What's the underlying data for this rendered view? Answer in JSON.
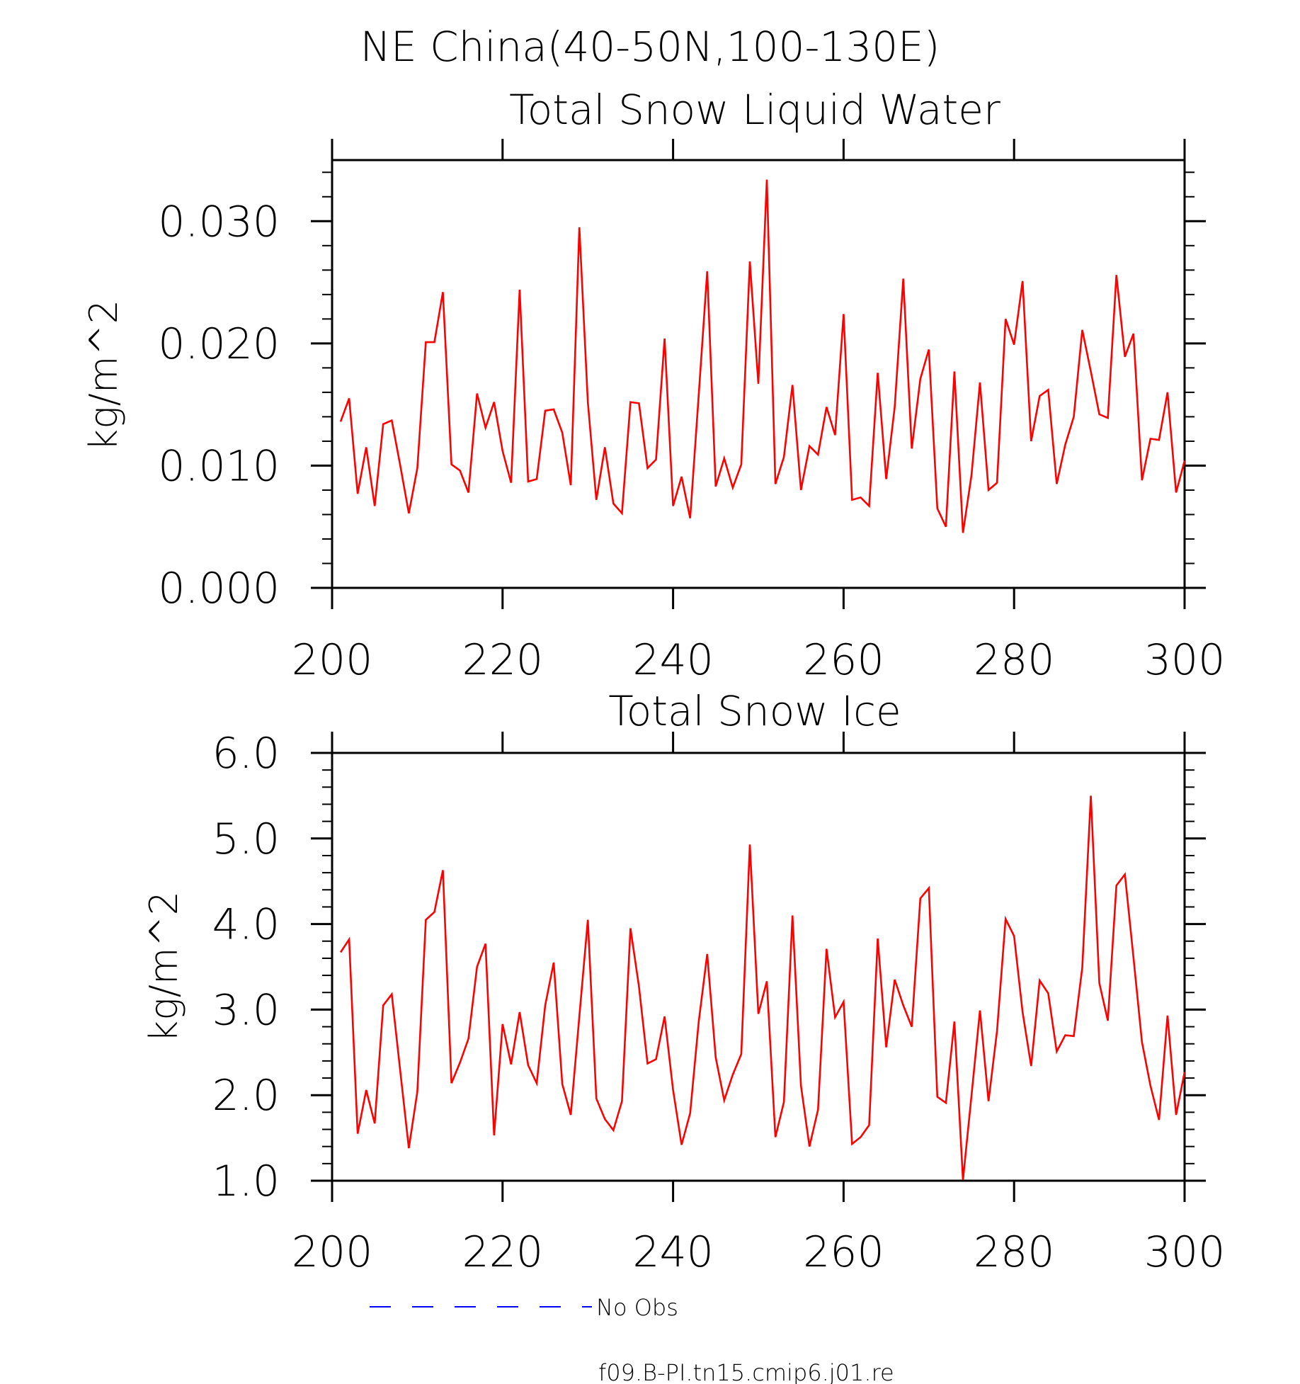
{
  "suptitle": "NE China(40-50N,100-130E)",
  "chart_data": [
    {
      "type": "line",
      "title": "Total Snow Liquid Water",
      "xlabel": "",
      "ylabel": "kg/m^2",
      "xlim": [
        200,
        300
      ],
      "ylim": [
        0,
        0.035
      ],
      "xticks": [
        200,
        220,
        240,
        260,
        280,
        300
      ],
      "xtick_labels": [
        "200",
        "220",
        "240",
        "260",
        "280",
        "300"
      ],
      "yticks": [
        0,
        0.01,
        0.02,
        0.03
      ],
      "ytick_labels": [
        "0.000",
        "0.010",
        "0.020",
        "0.030"
      ],
      "series": [
        {
          "name": "f09.B-PI.tn15.cmip6.j01.re",
          "color": "#ff0000",
          "x_start": 201,
          "x_step": 1,
          "values": [
            0.0136,
            0.0155,
            0.0077,
            0.0115,
            0.0067,
            0.0134,
            0.0137,
            0.01,
            0.0061,
            0.0098,
            0.0201,
            0.0201,
            0.0242,
            0.0101,
            0.0096,
            0.0078,
            0.0159,
            0.0131,
            0.0152,
            0.0112,
            0.0086,
            0.0244,
            0.0087,
            0.0089,
            0.0145,
            0.0146,
            0.0127,
            0.0084,
            0.0295,
            0.0152,
            0.0072,
            0.0115,
            0.0069,
            0.0061,
            0.0152,
            0.0151,
            0.0098,
            0.0105,
            0.0204,
            0.0067,
            0.0091,
            0.0057,
            0.0157,
            0.0259,
            0.0083,
            0.0106,
            0.0082,
            0.0101,
            0.0267,
            0.0167,
            0.0334,
            0.0085,
            0.0107,
            0.0166,
            0.008,
            0.0116,
            0.0109,
            0.0148,
            0.0125,
            0.0224,
            0.0072,
            0.0074,
            0.0067,
            0.0176,
            0.0089,
            0.0148,
            0.0253,
            0.0114,
            0.0171,
            0.0195,
            0.0065,
            0.005,
            0.0177,
            0.0045,
            0.0092,
            0.0168,
            0.008,
            0.0086,
            0.022,
            0.0199,
            0.0251,
            0.012,
            0.0157,
            0.0162,
            0.0085,
            0.0117,
            0.014,
            0.0211,
            0.0177,
            0.0142,
            0.0139,
            0.0256,
            0.0189,
            0.0208,
            0.0088,
            0.0122,
            0.0121,
            0.016,
            0.0078,
            0.0104
          ]
        }
      ]
    },
    {
      "type": "line",
      "title": "Total Snow Ice",
      "xlabel": "",
      "ylabel": "kg/m^2",
      "xlim": [
        200,
        300
      ],
      "ylim": [
        1.0,
        6.0
      ],
      "xticks": [
        200,
        220,
        240,
        260,
        280,
        300
      ],
      "xtick_labels": [
        "200",
        "220",
        "240",
        "260",
        "280",
        "300"
      ],
      "yticks": [
        1,
        2,
        3,
        4,
        5,
        6
      ],
      "ytick_labels": [
        "1.0",
        "2.0",
        "3.0",
        "4.0",
        "5.0",
        "6.0"
      ],
      "series": [
        {
          "name": "f09.B-PI.tn15.cmip6.j01.re",
          "color": "#ff0000",
          "x_start": 201,
          "x_step": 1,
          "values": [
            3.67,
            3.82,
            1.55,
            2.06,
            1.67,
            3.05,
            3.18,
            2.28,
            1.38,
            2.04,
            4.05,
            4.14,
            4.63,
            2.14,
            2.38,
            2.66,
            3.5,
            3.77,
            1.53,
            2.83,
            2.36,
            2.97,
            2.35,
            2.14,
            3.05,
            3.55,
            2.13,
            1.77,
            2.92,
            4.05,
            1.96,
            1.72,
            1.59,
            1.93,
            3.95,
            3.27,
            2.37,
            2.42,
            2.92,
            2.06,
            1.42,
            1.79,
            2.85,
            3.65,
            2.44,
            1.94,
            2.24,
            2.48,
            4.93,
            2.95,
            3.33,
            1.51,
            1.92,
            4.1,
            2.11,
            1.4,
            1.83,
            3.71,
            2.91,
            3.09,
            1.43,
            1.51,
            1.65,
            3.83,
            2.56,
            3.35,
            3.05,
            2.8,
            4.3,
            4.42,
            1.98,
            1.91,
            2.86,
            1.01,
            1.99,
            2.99,
            1.93,
            2.75,
            4.06,
            3.86,
            2.97,
            2.34,
            3.34,
            3.19,
            2.51,
            2.7,
            2.69,
            3.49,
            5.5,
            3.31,
            2.87,
            4.45,
            4.58,
            3.61,
            2.62,
            2.11,
            1.71,
            2.93,
            1.77,
            2.27
          ]
        }
      ]
    }
  ],
  "legend": [
    {
      "label": "No Obs",
      "color": "#0000ff",
      "style": "dashed"
    },
    {
      "label": "f09.B-PI.tn15.cmip6.j01.re",
      "color": "#ff0000",
      "style": "solid"
    }
  ]
}
